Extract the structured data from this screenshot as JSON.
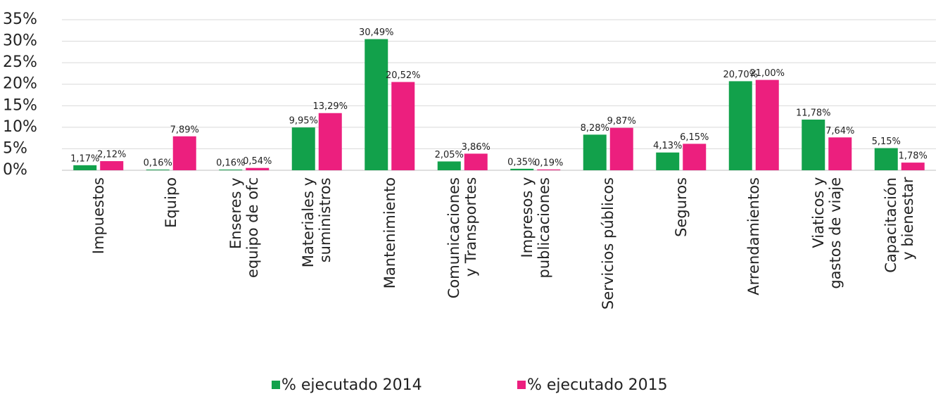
{
  "chart_data": {
    "type": "bar",
    "categories": [
      "Impuestos",
      "Equipo",
      "Enseres y\nequipo de ofc",
      "Materiales y\nsuministros",
      "Mantenimiento",
      "Comunicaciones\ny Transportes",
      "Impresos y\npublicaciones",
      "Servicios públicos",
      "Seguros",
      "Arrendamientos",
      "Viaticos y\ngastos de viaje",
      "Capacitación\ny bienestar"
    ],
    "series": [
      {
        "name": "% ejecutado 2014",
        "color": "#12a14b",
        "values": [
          1.17,
          0.16,
          0.16,
          9.95,
          30.49,
          2.05,
          0.35,
          8.28,
          4.13,
          20.7,
          11.78,
          5.15
        ],
        "value_labels": [
          "1,17%",
          "0,16%",
          "0,16%",
          "9,95%",
          "30,49%",
          "2,05%",
          "0,35%",
          "8,28%",
          "4,13%",
          "20,70%",
          "11,78%",
          "5,15%"
        ]
      },
      {
        "name": "% ejecutado 2015",
        "color": "#ec1f7e",
        "values": [
          2.12,
          7.89,
          0.54,
          13.29,
          20.52,
          3.86,
          0.19,
          9.87,
          6.15,
          21.0,
          7.64,
          1.78
        ],
        "value_labels": [
          "2,12%",
          "7,89%",
          "0,54%",
          "13,29%",
          "20,52%",
          "3,86%",
          "0,19%",
          "9,87%",
          "6,15%",
          "21,00%",
          "7,64%",
          "1,78%"
        ]
      }
    ],
    "ylim": [
      0,
      35
    ],
    "yticks": [
      {
        "value": 0,
        "label": "0%"
      },
      {
        "value": 5,
        "label": "5%"
      },
      {
        "value": 10,
        "label": "10%"
      },
      {
        "value": 15,
        "label": "15%"
      },
      {
        "value": 20,
        "label": "20%"
      },
      {
        "value": 25,
        "label": "25%"
      },
      {
        "value": 30,
        "label": "30%"
      },
      {
        "value": 35,
        "label": "35%"
      }
    ],
    "grid": true,
    "legend": "bottom"
  }
}
